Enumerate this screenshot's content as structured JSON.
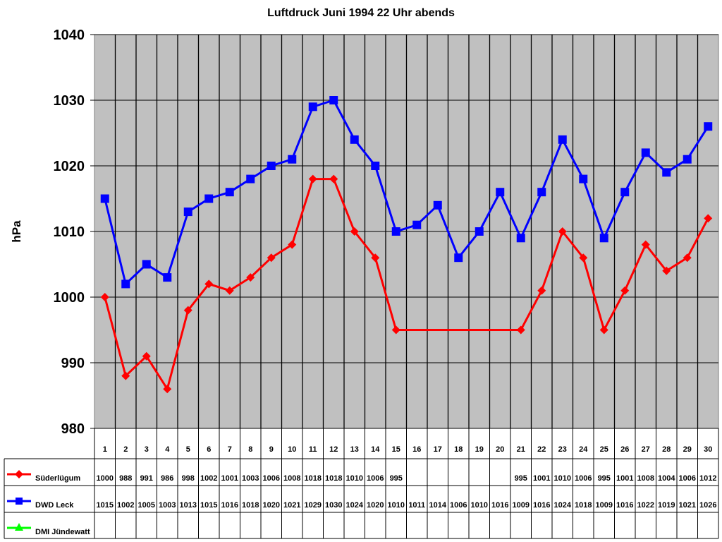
{
  "chart_data": {
    "type": "line",
    "title": "Luftdruck Juni 1994 22 Uhr abends",
    "xlabel": "",
    "ylabel": "hPa",
    "ylim": [
      980,
      1040
    ],
    "yticks": [
      980,
      990,
      1000,
      1010,
      1020,
      1030,
      1040
    ],
    "grid": true,
    "legend_position": "data-table-left",
    "categories": [
      "1",
      "2",
      "3",
      "4",
      "5",
      "6",
      "7",
      "8",
      "9",
      "10",
      "11",
      "12",
      "13",
      "14",
      "15",
      "16",
      "17",
      "18",
      "19",
      "20",
      "21",
      "22",
      "23",
      "24",
      "25",
      "26",
      "27",
      "28",
      "29",
      "30"
    ],
    "series": [
      {
        "name": "Süderlügum",
        "color": "#ff0000",
        "marker": "diamond",
        "values": [
          1000,
          988,
          991,
          986,
          998,
          1002,
          1001,
          1003,
          1006,
          1008,
          1018,
          1018,
          1010,
          1006,
          995,
          null,
          null,
          null,
          null,
          null,
          995,
          1001,
          1010,
          1006,
          995,
          1001,
          1008,
          1004,
          1006,
          1012
        ]
      },
      {
        "name": "DWD Leck",
        "color": "#0000ff",
        "marker": "square",
        "values": [
          1015,
          1002,
          1005,
          1003,
          1013,
          1015,
          1016,
          1018,
          1020,
          1021,
          1029,
          1030,
          1024,
          1020,
          1010,
          1011,
          1014,
          1006,
          1010,
          1016,
          1009,
          1016,
          1024,
          1018,
          1009,
          1016,
          1022,
          1019,
          1021,
          1026
        ]
      },
      {
        "name": "DMI Jündewatt",
        "color": "#00ff00",
        "marker": "triangle",
        "values": [
          null,
          null,
          null,
          null,
          null,
          null,
          null,
          null,
          null,
          null,
          null,
          null,
          null,
          null,
          null,
          null,
          null,
          null,
          null,
          null,
          null,
          null,
          null,
          null,
          null,
          null,
          null,
          null,
          null,
          null
        ]
      }
    ]
  }
}
